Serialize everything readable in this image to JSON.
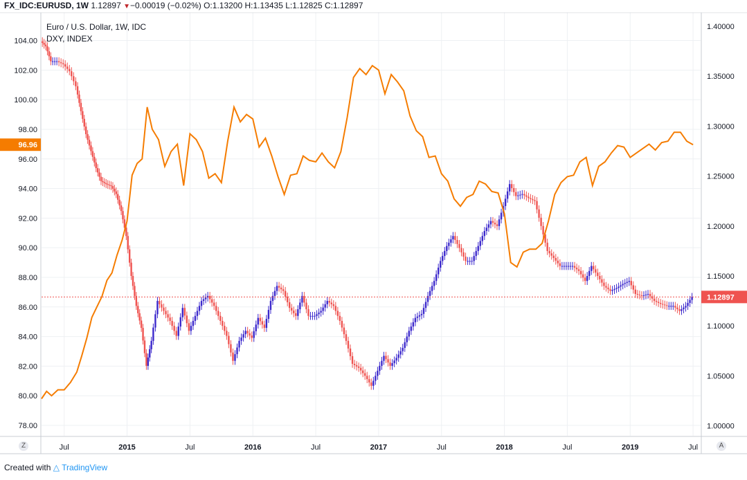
{
  "header": {
    "symbol": "FX_IDC:EURUSD, 1W",
    "last": "1.12897",
    "change": "▼",
    "change_text": "−0.00019 (−0.02%)",
    "open_label": "O:",
    "open": "1.13200",
    "high_label": "H:",
    "high": "1.13435",
    "low_label": "L:",
    "low": "1.12825",
    "close_label": "C:",
    "close": "1.12897"
  },
  "legend": {
    "line1": "Euro / U.S. Dollar, 1W, IDC",
    "line2": "DXY, INDEX"
  },
  "footer": {
    "created_with": "Created with",
    "brand": "TradingView"
  },
  "corner_left": "Z",
  "corner_right": "A",
  "colors": {
    "dxy_line": "#f57c00",
    "candle_up": "#3b28cc",
    "candle_down": "#ef5350",
    "grid": "#eef0f3",
    "axis_text": "#131722",
    "dxy_badge": "#f57c00",
    "eur_badge": "#ef5350",
    "price_line": "#ef5350"
  },
  "chart_data": {
    "type": "line",
    "title": "Euro / U.S. Dollar, 1W, IDC",
    "x_ticks": [
      "Jul",
      "2015",
      "Jul",
      "2016",
      "Jul",
      "2017",
      "Jul",
      "2018",
      "Jul",
      "2019",
      "Jul"
    ],
    "x_tick_years": [
      2014.5,
      2015.0,
      2015.5,
      2016.0,
      2016.5,
      2017.0,
      2017.5,
      2018.0,
      2018.5,
      2019.0,
      2019.5
    ],
    "x_bold": [
      false,
      true,
      false,
      true,
      false,
      true,
      false,
      true,
      false,
      true,
      false
    ],
    "xlim": [
      2014.32,
      2019.56
    ],
    "left_axis": {
      "series": "DXY",
      "ylim": [
        77.3,
        105.8
      ],
      "ticks": [
        "78.00",
        "80.00",
        "82.00",
        "84.00",
        "86.00",
        "88.00",
        "90.00",
        "92.00",
        "94.00",
        "96.00",
        "98.00",
        "100.00",
        "102.00",
        "104.00"
      ]
    },
    "right_axis": {
      "series": "EURUSD",
      "ylim": [
        0.99,
        1.4125
      ],
      "ticks": [
        "1.00000",
        "1.05000",
        "1.10000",
        "1.15000",
        "1.20000",
        "1.25000",
        "1.30000",
        "1.35000",
        "1.40000"
      ]
    },
    "dxy_last": "96.96",
    "eur_last": "1.12897",
    "series": [
      {
        "name": "DXY, INDEX",
        "axis": "left",
        "x": [
          2014.32,
          2014.36,
          2014.4,
          2014.45,
          2014.5,
          2014.55,
          2014.6,
          2014.64,
          2014.68,
          2014.72,
          2014.76,
          2014.8,
          2014.84,
          2014.88,
          2014.92,
          2014.96,
          2015.0,
          2015.04,
          2015.08,
          2015.12,
          2015.16,
          2015.2,
          2015.25,
          2015.3,
          2015.35,
          2015.4,
          2015.45,
          2015.5,
          2015.55,
          2015.6,
          2015.65,
          2015.7,
          2015.75,
          2015.8,
          2015.85,
          2015.9,
          2015.95,
          2016.0,
          2016.05,
          2016.1,
          2016.15,
          2016.2,
          2016.25,
          2016.3,
          2016.35,
          2016.4,
          2016.45,
          2016.5,
          2016.55,
          2016.6,
          2016.65,
          2016.7,
          2016.75,
          2016.8,
          2016.85,
          2016.9,
          2016.95,
          2017.0,
          2017.05,
          2017.1,
          2017.15,
          2017.2,
          2017.25,
          2017.3,
          2017.35,
          2017.4,
          2017.45,
          2017.5,
          2017.55,
          2017.6,
          2017.65,
          2017.7,
          2017.75,
          2017.8,
          2017.85,
          2017.9,
          2017.95,
          2018.0,
          2018.05,
          2018.1,
          2018.15,
          2018.2,
          2018.25,
          2018.3,
          2018.35,
          2018.4,
          2018.45,
          2018.5,
          2018.55,
          2018.6,
          2018.65,
          2018.7,
          2018.75,
          2018.8,
          2018.85,
          2018.9,
          2018.95,
          2019.0,
          2019.05,
          2019.1,
          2019.15,
          2019.2,
          2019.25,
          2019.3,
          2019.35,
          2019.4,
          2019.45,
          2019.5
        ],
        "y": [
          79.8,
          80.3,
          80.0,
          80.4,
          80.4,
          80.9,
          81.6,
          82.7,
          83.9,
          85.3,
          86.0,
          86.7,
          87.8,
          88.3,
          89.5,
          90.5,
          91.8,
          94.9,
          95.7,
          96.0,
          99.5,
          98.0,
          97.3,
          95.5,
          96.5,
          97.0,
          94.2,
          97.7,
          97.3,
          96.5,
          94.7,
          95.0,
          94.4,
          97.2,
          99.5,
          98.5,
          99.0,
          98.7,
          96.8,
          97.4,
          96.2,
          94.8,
          93.6,
          94.9,
          95.0,
          96.2,
          95.9,
          95.8,
          96.4,
          95.8,
          95.4,
          96.5,
          98.8,
          101.5,
          102.1,
          101.7,
          102.3,
          102.0,
          100.4,
          101.7,
          101.2,
          100.6,
          98.9,
          97.9,
          97.5,
          96.1,
          96.2,
          95.0,
          94.5,
          93.3,
          92.8,
          93.4,
          93.6,
          94.5,
          94.3,
          93.8,
          93.7,
          92.3,
          89.0,
          88.7,
          89.7,
          89.9,
          89.9,
          90.3,
          91.8,
          93.6,
          94.4,
          94.8,
          94.9,
          95.8,
          96.1,
          94.2,
          95.5,
          95.8,
          96.4,
          96.9,
          96.8,
          96.1,
          96.4,
          96.7,
          97.0,
          96.6,
          97.1,
          97.2,
          97.8,
          97.8,
          97.2,
          96.96
        ]
      },
      {
        "name": "Euro / U.S. Dollar, 1W, IDC",
        "axis": "right",
        "x": [
          2014.32,
          2014.36,
          2014.4,
          2014.45,
          2014.5,
          2014.55,
          2014.6,
          2014.64,
          2014.68,
          2014.72,
          2014.76,
          2014.8,
          2014.84,
          2014.88,
          2014.92,
          2014.96,
          2015.0,
          2015.04,
          2015.08,
          2015.12,
          2015.16,
          2015.2,
          2015.25,
          2015.3,
          2015.35,
          2015.4,
          2015.45,
          2015.5,
          2015.55,
          2015.6,
          2015.65,
          2015.7,
          2015.75,
          2015.8,
          2015.85,
          2015.9,
          2015.95,
          2016.0,
          2016.05,
          2016.1,
          2016.15,
          2016.2,
          2016.25,
          2016.3,
          2016.35,
          2016.4,
          2016.45,
          2016.5,
          2016.55,
          2016.6,
          2016.65,
          2016.7,
          2016.75,
          2016.8,
          2016.85,
          2016.9,
          2016.95,
          2017.0,
          2017.05,
          2017.1,
          2017.15,
          2017.2,
          2017.25,
          2017.3,
          2017.35,
          2017.4,
          2017.45,
          2017.5,
          2017.55,
          2017.6,
          2017.65,
          2017.7,
          2017.75,
          2017.8,
          2017.85,
          2017.9,
          2017.95,
          2018.0,
          2018.05,
          2018.1,
          2018.15,
          2018.2,
          2018.25,
          2018.3,
          2018.35,
          2018.4,
          2018.45,
          2018.5,
          2018.55,
          2018.6,
          2018.65,
          2018.7,
          2018.75,
          2018.8,
          2018.85,
          2018.9,
          2018.95,
          2019.0,
          2019.05,
          2019.1,
          2019.15,
          2019.2,
          2019.25,
          2019.3,
          2019.35,
          2019.4,
          2019.45,
          2019.5
        ],
        "y": [
          1.385,
          1.38,
          1.365,
          1.365,
          1.362,
          1.355,
          1.34,
          1.315,
          1.292,
          1.275,
          1.258,
          1.245,
          1.242,
          1.24,
          1.232,
          1.215,
          1.19,
          1.15,
          1.12,
          1.098,
          1.06,
          1.085,
          1.125,
          1.115,
          1.105,
          1.09,
          1.118,
          1.095,
          1.11,
          1.125,
          1.13,
          1.12,
          1.105,
          1.09,
          1.065,
          1.085,
          1.095,
          1.088,
          1.108,
          1.098,
          1.125,
          1.14,
          1.135,
          1.118,
          1.11,
          1.13,
          1.11,
          1.11,
          1.115,
          1.125,
          1.12,
          1.105,
          1.085,
          1.062,
          1.058,
          1.05,
          1.04,
          1.055,
          1.07,
          1.06,
          1.068,
          1.078,
          1.095,
          1.108,
          1.112,
          1.13,
          1.145,
          1.165,
          1.18,
          1.19,
          1.178,
          1.165,
          1.165,
          1.18,
          1.195,
          1.205,
          1.2,
          1.22,
          1.242,
          1.23,
          1.232,
          1.228,
          1.225,
          1.2,
          1.175,
          1.168,
          1.16,
          1.16,
          1.16,
          1.155,
          1.145,
          1.16,
          1.15,
          1.14,
          1.135,
          1.138,
          1.142,
          1.145,
          1.132,
          1.13,
          1.132,
          1.125,
          1.122,
          1.12,
          1.12,
          1.115,
          1.12,
          1.129
        ]
      }
    ]
  }
}
